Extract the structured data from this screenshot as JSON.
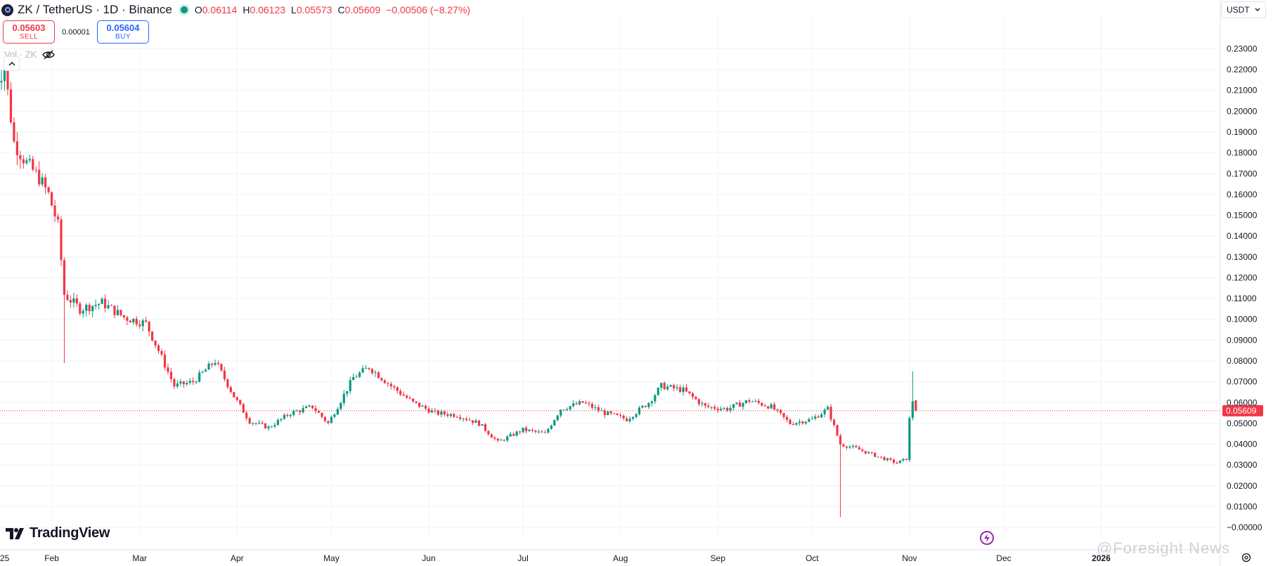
{
  "header": {
    "title": "ZK / TetherUS · 1D · Binance",
    "ohlc": [
      {
        "key": "O",
        "value": "0.06114"
      },
      {
        "key": "H",
        "value": "0.06123"
      },
      {
        "key": "L",
        "value": "0.05573"
      },
      {
        "key": "C",
        "value": "0.05609"
      }
    ],
    "change": "−0.00506 (−8.27%)",
    "status_color": "#089981"
  },
  "trade": {
    "sell_price": "0.05603",
    "sell_label": "SELL",
    "spread": "0.00001",
    "buy_price": "0.05604",
    "buy_label": "BUY"
  },
  "indicator": {
    "vol_label": "Vol · ZK"
  },
  "currency": {
    "selected": "USDT"
  },
  "brand": {
    "name": "TradingView",
    "watermark": "@Foresight News"
  },
  "colors": {
    "up": "#089981",
    "down": "#f23645",
    "last_price": "#f23645"
  },
  "chart_data": {
    "type": "candlestick",
    "y_range": [
      -0.004,
      0.246
    ],
    "y_ticks": [
      "0.23000",
      "0.22000",
      "0.21000",
      "0.20000",
      "0.19000",
      "0.18000",
      "0.17000",
      "0.16000",
      "0.15000",
      "0.14000",
      "0.13000",
      "0.12000",
      "0.11000",
      "0.10000",
      "0.09000",
      "0.08000",
      "0.07000",
      "0.06000",
      "0.05000",
      "0.04000",
      "0.03000",
      "0.02000",
      "0.01000",
      "−0.00000"
    ],
    "x_ticks": [
      "25",
      "Feb",
      "Mar",
      "Apr",
      "May",
      "Jun",
      "Jul",
      "Aug",
      "Sep",
      "Oct",
      "Nov",
      "Dec",
      "2026"
    ],
    "last_price": "0.05609",
    "grid": true,
    "weekly_anchors": [
      {
        "date": "2025-01-14",
        "close": 0.214
      },
      {
        "date": "2025-01-17",
        "close": 0.221
      },
      {
        "date": "2025-01-20",
        "close": 0.185
      },
      {
        "date": "2025-01-24",
        "close": 0.175
      },
      {
        "date": "2025-01-28",
        "close": 0.168
      },
      {
        "date": "2025-01-31",
        "close": 0.16
      },
      {
        "date": "2025-02-03",
        "close": 0.145
      },
      {
        "date": "2025-02-05",
        "close": 0.112
      },
      {
        "date": "2025-02-10",
        "close": 0.105
      },
      {
        "date": "2025-02-17",
        "close": 0.108
      },
      {
        "date": "2025-02-24",
        "close": 0.101
      },
      {
        "date": "2025-03-03",
        "close": 0.098
      },
      {
        "date": "2025-03-07",
        "close": 0.085
      },
      {
        "date": "2025-03-12",
        "close": 0.068
      },
      {
        "date": "2025-03-18",
        "close": 0.07
      },
      {
        "date": "2025-03-25",
        "close": 0.08
      },
      {
        "date": "2025-03-31",
        "close": 0.063
      },
      {
        "date": "2025-04-05",
        "close": 0.051
      },
      {
        "date": "2025-04-11",
        "close": 0.048
      },
      {
        "date": "2025-04-18",
        "close": 0.055
      },
      {
        "date": "2025-04-25",
        "close": 0.058
      },
      {
        "date": "2025-04-30",
        "close": 0.05
      },
      {
        "date": "2025-05-08",
        "close": 0.072
      },
      {
        "date": "2025-05-13",
        "close": 0.077
      },
      {
        "date": "2025-05-20",
        "close": 0.068
      },
      {
        "date": "2025-05-27",
        "close": 0.06
      },
      {
        "date": "2025-06-03",
        "close": 0.055
      },
      {
        "date": "2025-06-10",
        "close": 0.054
      },
      {
        "date": "2025-06-17",
        "close": 0.05
      },
      {
        "date": "2025-06-23",
        "close": 0.041
      },
      {
        "date": "2025-07-01",
        "close": 0.047
      },
      {
        "date": "2025-07-08",
        "close": 0.045
      },
      {
        "date": "2025-07-13",
        "close": 0.057
      },
      {
        "date": "2025-07-20",
        "close": 0.06
      },
      {
        "date": "2025-07-27",
        "close": 0.055
      },
      {
        "date": "2025-08-03",
        "close": 0.052
      },
      {
        "date": "2025-08-10",
        "close": 0.06
      },
      {
        "date": "2025-08-14",
        "close": 0.068
      },
      {
        "date": "2025-08-21",
        "close": 0.066
      },
      {
        "date": "2025-08-28",
        "close": 0.058
      },
      {
        "date": "2025-09-04",
        "close": 0.057
      },
      {
        "date": "2025-09-11",
        "close": 0.061
      },
      {
        "date": "2025-09-18",
        "close": 0.058
      },
      {
        "date": "2025-09-24",
        "close": 0.05
      },
      {
        "date": "2025-10-01",
        "close": 0.052
      },
      {
        "date": "2025-10-06",
        "close": 0.057
      },
      {
        "date": "2025-10-10",
        "close": 0.04
      },
      {
        "date": "2025-10-15",
        "close": 0.038
      },
      {
        "date": "2025-10-22",
        "close": 0.034
      },
      {
        "date": "2025-10-28",
        "close": 0.031
      },
      {
        "date": "2025-10-31",
        "close": 0.033
      },
      {
        "date": "2025-11-01",
        "close": 0.052
      },
      {
        "date": "2025-11-02",
        "close": 0.061
      },
      {
        "date": "2025-11-03",
        "close": 0.05609
      }
    ],
    "notable_wicks": [
      {
        "date": "2025-02-05",
        "low": 0.079
      },
      {
        "date": "2025-10-10",
        "low": 0.005
      },
      {
        "date": "2025-11-02",
        "high": 0.075
      }
    ]
  }
}
